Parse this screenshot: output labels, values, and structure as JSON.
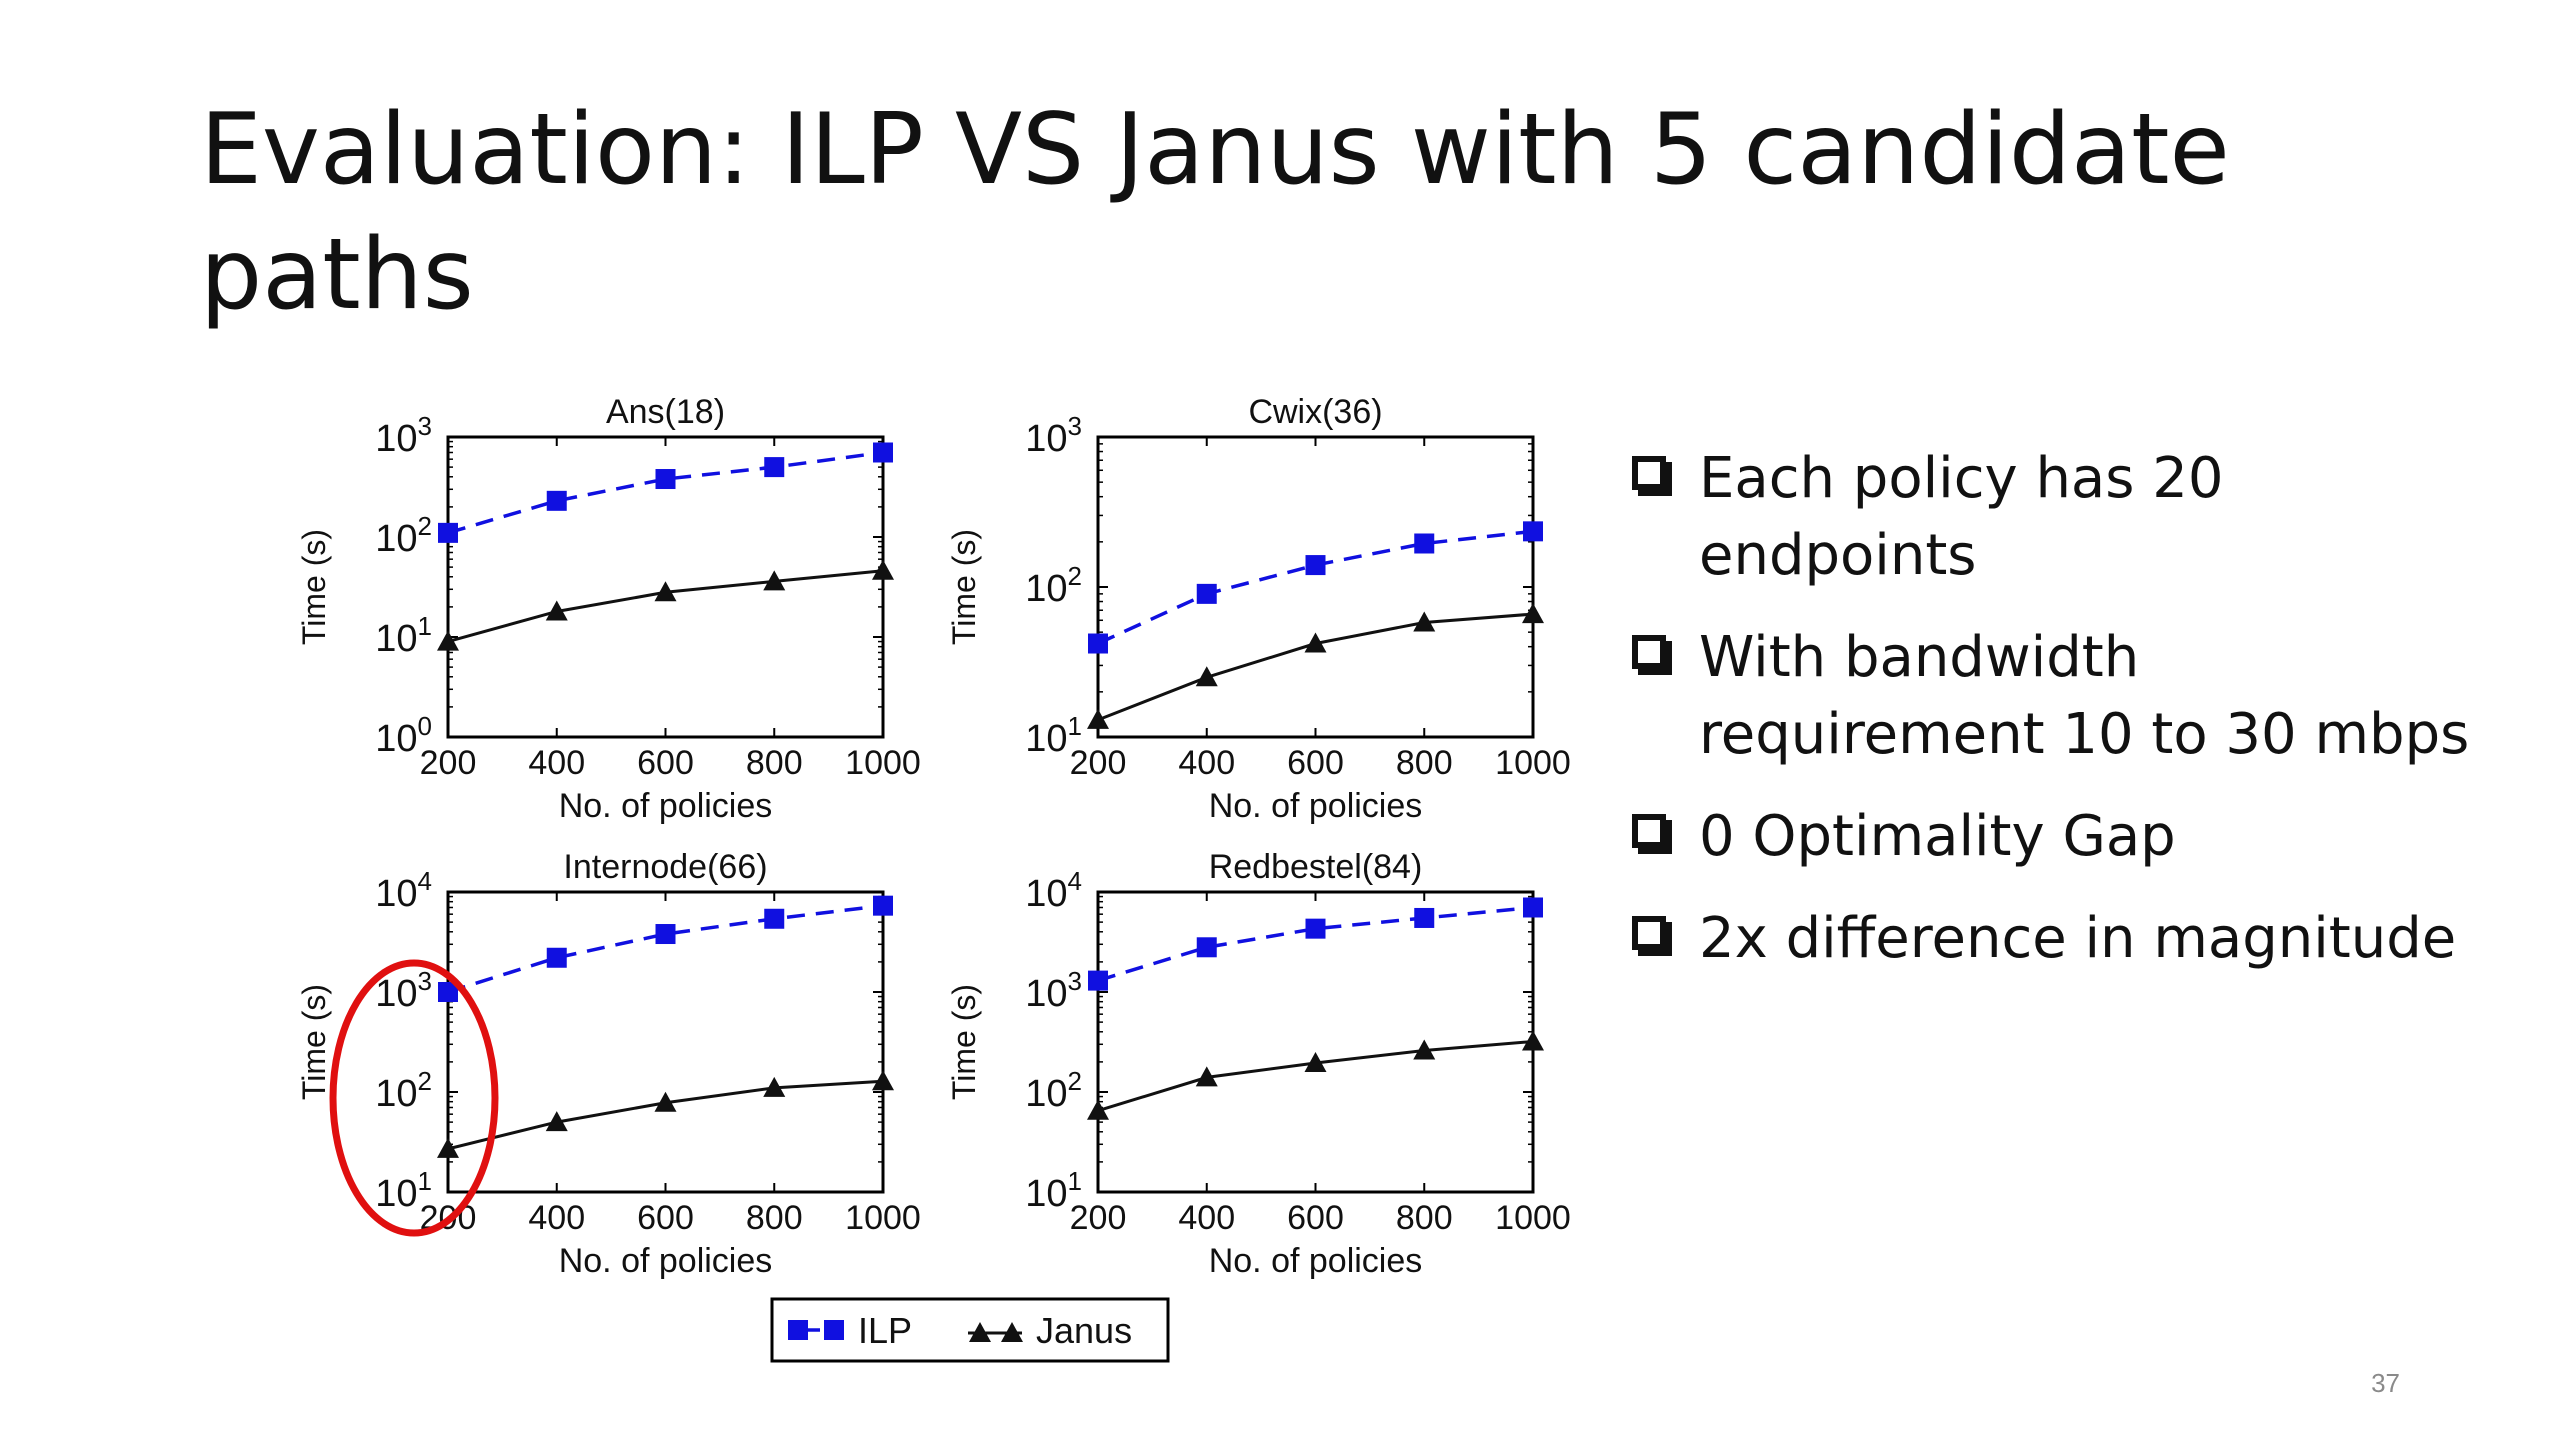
{
  "slide": {
    "title": "Evaluation: ILP VS Janus with 5 candidate paths",
    "page_number": "37",
    "bullets": [
      {
        "line1": "Each policy has 20",
        "line2": "endpoints"
      },
      {
        "line1": "With bandwidth",
        "line2": "requirement 10 to 30 mbps"
      },
      {
        "line1": "0 Optimality Gap",
        "line2": ""
      },
      {
        "line1": "2x difference in magnitude",
        "line2": ""
      }
    ]
  },
  "colors": {
    "ilp": "#1010e0",
    "janus": "#111111",
    "highlight": "#e01010"
  },
  "legend": {
    "items": [
      "ILP",
      "Janus"
    ],
    "placement": "bottom-center"
  },
  "highlight": {
    "shape": "ellipse",
    "panel": "Internode(66)",
    "target": "x=200, y-axis low end"
  },
  "chart_data": [
    {
      "type": "line",
      "title": "Ans(18)",
      "xlabel": "No. of policies",
      "ylabel": "Time (s)",
      "yscale": "log",
      "xlim": [
        200,
        1000
      ],
      "ylim_exp": [
        0,
        3
      ],
      "x": [
        200,
        400,
        600,
        800,
        1000
      ],
      "xticks": [
        "200",
        "400",
        "600",
        "800",
        "1000"
      ],
      "yticks_exp": [
        0,
        1,
        2,
        3
      ],
      "series": [
        {
          "name": "ILP",
          "values": [
            110,
            230,
            380,
            500,
            700
          ]
        },
        {
          "name": "Janus",
          "values": [
            9,
            18,
            28,
            36,
            46
          ]
        }
      ]
    },
    {
      "type": "line",
      "title": "Cwix(36)",
      "xlabel": "No. of policies",
      "ylabel": "Time (s)",
      "yscale": "log",
      "xlim": [
        200,
        1000
      ],
      "ylim_exp": [
        1,
        3
      ],
      "x": [
        200,
        400,
        600,
        800,
        1000
      ],
      "xticks": [
        "200",
        "400",
        "600",
        "800",
        "1000"
      ],
      "yticks_exp": [
        1,
        2,
        3
      ],
      "series": [
        {
          "name": "ILP",
          "values": [
            42,
            90,
            140,
            195,
            235
          ]
        },
        {
          "name": "Janus",
          "values": [
            13,
            25,
            42,
            58,
            66
          ]
        }
      ]
    },
    {
      "type": "line",
      "title": "Internode(66)",
      "xlabel": "No. of policies",
      "ylabel": "Time (s)",
      "yscale": "log",
      "xlim": [
        200,
        1000
      ],
      "ylim_exp": [
        1,
        4
      ],
      "x": [
        200,
        400,
        600,
        800,
        1000
      ],
      "xticks": [
        "200",
        "400",
        "600",
        "800",
        "1000"
      ],
      "yticks_exp": [
        1,
        2,
        3,
        4
      ],
      "series": [
        {
          "name": "ILP",
          "values": [
            1000,
            2200,
            3800,
            5400,
            7300
          ]
        },
        {
          "name": "Janus",
          "values": [
            27,
            50,
            78,
            110,
            128
          ]
        }
      ]
    },
    {
      "type": "line",
      "title": "Redbestel(84)",
      "xlabel": "No. of policies",
      "ylabel": "Time (s)",
      "yscale": "log",
      "xlim": [
        200,
        1000
      ],
      "ylim_exp": [
        1,
        4
      ],
      "x": [
        200,
        400,
        600,
        800,
        1000
      ],
      "xticks": [
        "200",
        "400",
        "600",
        "800",
        "1000"
      ],
      "yticks_exp": [
        1,
        2,
        3,
        4
      ],
      "series": [
        {
          "name": "ILP",
          "values": [
            1300,
            2800,
            4300,
            5500,
            7000
          ]
        },
        {
          "name": "Janus",
          "values": [
            65,
            140,
            195,
            260,
            320
          ]
        }
      ]
    }
  ]
}
